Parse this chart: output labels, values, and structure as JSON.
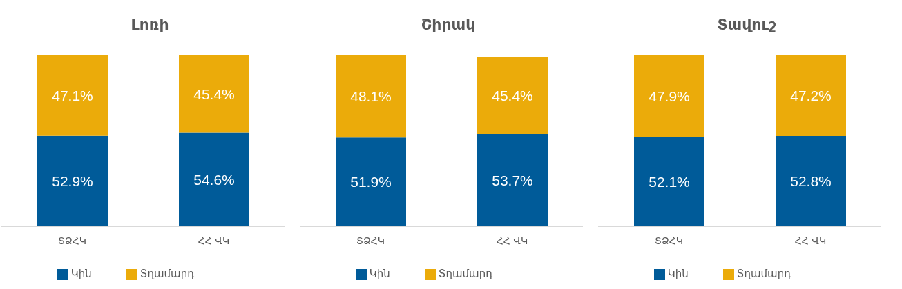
{
  "chart_data": [
    {
      "type": "bar",
      "title": "Լոռի",
      "categories": [
        "ՏՁՀԿ",
        "ՀՀ ՎԿ"
      ],
      "stacked": true,
      "legend": "bottom",
      "grid": false,
      "tick_labels": "x",
      "series": [
        {
          "name": "Կին",
          "color": "#005b99",
          "values": [
            52.9,
            54.6
          ],
          "value_labels": [
            "52.9%",
            "54.6%"
          ]
        },
        {
          "name": "Տղամարդ",
          "color": "#ebab0a",
          "values": [
            47.1,
            45.4
          ],
          "value_labels": [
            "47.1%",
            "45.4%"
          ]
        }
      ]
    },
    {
      "type": "bar",
      "title": "Շիրակ",
      "categories": [
        "ՏՁՀԿ",
        "ՀՀ ՎԿ"
      ],
      "stacked": true,
      "legend": "bottom",
      "grid": false,
      "tick_labels": "x",
      "series": [
        {
          "name": "Կին",
          "color": "#005b99",
          "values": [
            51.9,
            53.7
          ],
          "value_labels": [
            "51.9%",
            "53.7%"
          ]
        },
        {
          "name": "Տղամարդ",
          "color": "#ebab0a",
          "values": [
            48.1,
            45.4
          ],
          "value_labels": [
            "48.1%",
            "45.4%"
          ]
        }
      ]
    },
    {
      "type": "bar",
      "title": "Տավուշ",
      "categories": [
        "ՏՁՀԿ",
        "ՀՀ ՎԿ"
      ],
      "stacked": true,
      "legend": "bottom",
      "grid": false,
      "tick_labels": "x",
      "series": [
        {
          "name": "Կին",
          "color": "#005b99",
          "values": [
            52.1,
            52.8
          ],
          "value_labels": [
            "52.1%",
            "52.8%"
          ]
        },
        {
          "name": "Տղամարդ",
          "color": "#ebab0a",
          "values": [
            47.9,
            47.2
          ],
          "value_labels": [
            "47.9%",
            "47.2%"
          ]
        }
      ]
    }
  ]
}
